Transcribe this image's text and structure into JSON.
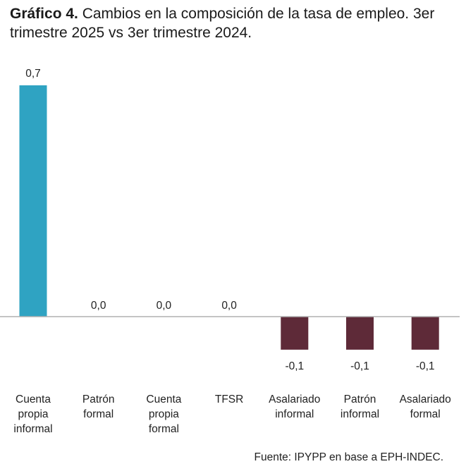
{
  "title": {
    "bold": "Gráfico 4.",
    "text": " Cambios en la composición de la tasa de empleo. 3er trimestre 2025 vs 3er trimestre 2024."
  },
  "source": "Fuente: IPYPP en base a EPH-INDEC.",
  "chart_data": {
    "type": "bar",
    "categories": [
      [
        "Cuenta",
        "propia",
        "informal"
      ],
      [
        "Patrón",
        "formal"
      ],
      [
        "Cuenta",
        "propia",
        "formal"
      ],
      [
        "TFSR"
      ],
      [
        "Asalariado",
        "informal"
      ],
      [
        "Patrón",
        "informal"
      ],
      [
        "Asalariado",
        "formal"
      ]
    ],
    "values": [
      0.7,
      0.0,
      0.0,
      0.0,
      -0.1,
      -0.1,
      -0.1
    ],
    "data_labels": [
      "0,7",
      "0,0",
      "0,0",
      "0,0",
      "-0,1",
      "-0,1",
      "-0,1"
    ],
    "colors": {
      "positive": "#2fa3c2",
      "negative": "#5e2a38",
      "axis": "#b0b0b0"
    },
    "ylim": [
      -0.1,
      0.7
    ],
    "grid": false,
    "legend": "none"
  }
}
